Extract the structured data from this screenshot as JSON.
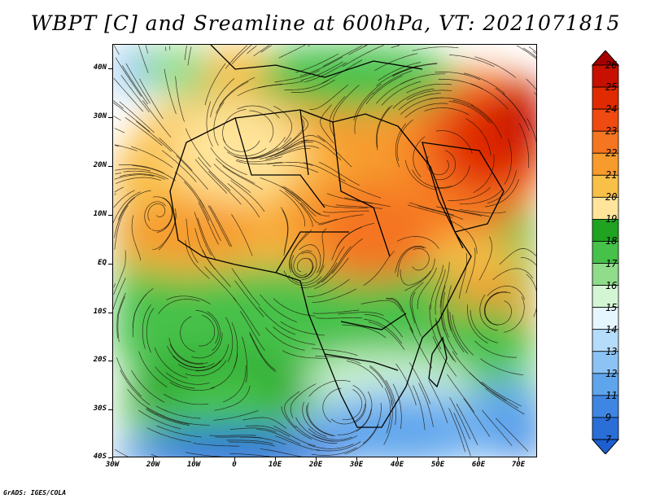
{
  "title": "WBPT [C] and Sreamline at 600hPa, VT: 2021071815",
  "credit": "GrADS: IGES/COLA",
  "map": {
    "lat_labels": [
      "40N",
      "30N",
      "20N",
      "10N",
      "EQ",
      "10S",
      "20S",
      "30S",
      "40S"
    ],
    "lon_labels": [
      "30W",
      "20W",
      "10W",
      "0",
      "10E",
      "20E",
      "30E",
      "40E",
      "50E",
      "60E",
      "70E"
    ]
  },
  "colorbar": {
    "labels": [
      "26",
      "25",
      "24",
      "23",
      "22",
      "21",
      "20",
      "19",
      "18",
      "17",
      "16",
      "15",
      "14",
      "13",
      "12",
      "11",
      "9",
      "7"
    ],
    "colors": [
      "#a50000",
      "#c81000",
      "#e02a00",
      "#ef4a10",
      "#f57520",
      "#f79b2d",
      "#f9c048",
      "#ffe49a",
      "#1fa320",
      "#46c14a",
      "#8fdc8a",
      "#d4f5d4",
      "#e6f6ff",
      "#b6dcfb",
      "#8cc3f5",
      "#5fa5ec",
      "#3e86e2",
      "#2a6ed8",
      "#1d5fd0"
    ]
  }
}
